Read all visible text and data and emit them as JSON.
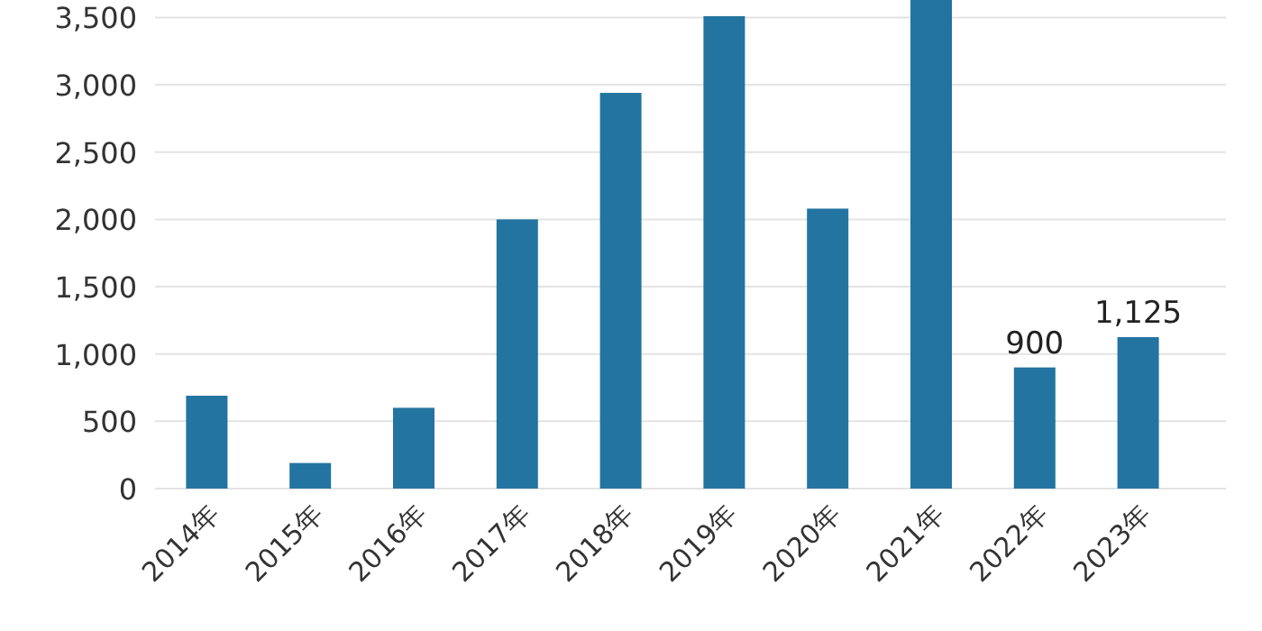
{
  "chart_data": {
    "type": "bar",
    "categories": [
      "2014年",
      "2015年",
      "2016年",
      "2017年",
      "2018年",
      "2019年",
      "2020年",
      "2021年",
      "2022年",
      "2023年"
    ],
    "values": [
      690,
      190,
      600,
      2000,
      2940,
      3510,
      2080,
      3630,
      900,
      1125
    ],
    "value_labels": [
      null,
      null,
      null,
      null,
      null,
      null,
      null,
      null,
      "900",
      "1,125"
    ],
    "color": "#2374a0",
    "ylim": [
      0,
      3630
    ],
    "yticks": [
      0,
      500,
      {
        "value": 1000,
        "label": "1,000"
      },
      {
        "value": 1500,
        "label": "1,500"
      },
      {
        "value": 2000,
        "label": "2,000"
      },
      {
        "value": 2500,
        "label": "2,500"
      },
      {
        "value": 3000,
        "label": "3,000"
      },
      {
        "value": 3500,
        "label": "3,500"
      }
    ],
    "grid": "y"
  }
}
